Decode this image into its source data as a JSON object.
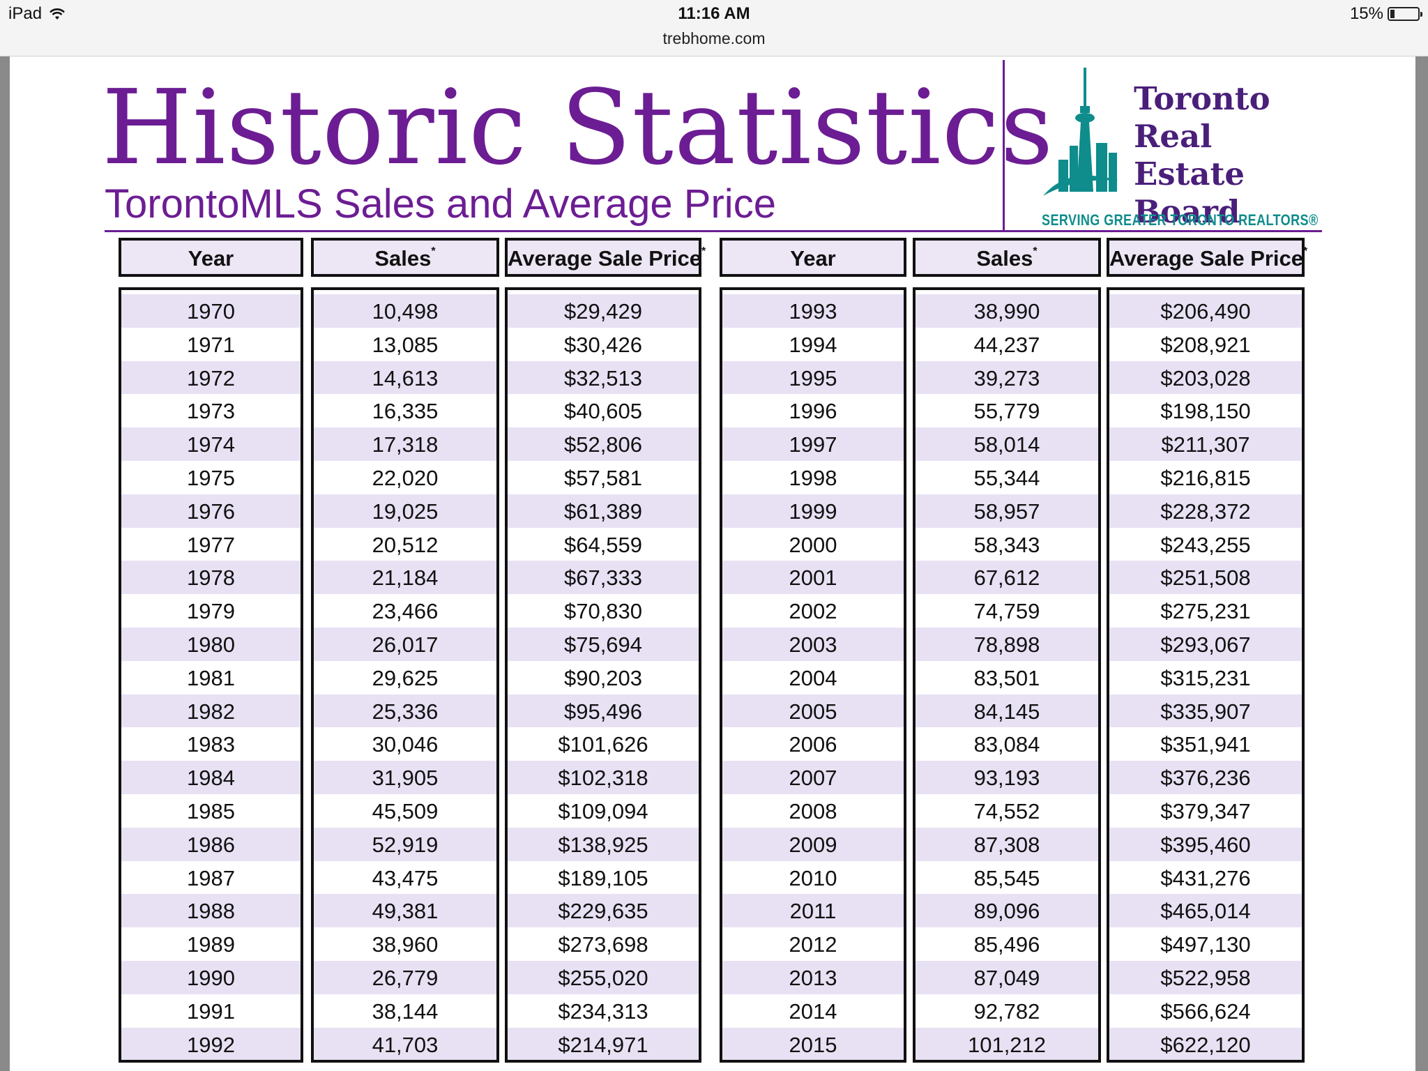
{
  "status_bar": {
    "device": "iPad",
    "time": "11:16 AM",
    "url": "trebhome.com",
    "battery_percent": "15%",
    "battery_level": 0.15
  },
  "header": {
    "title": "Historic Statistics",
    "subtitle": "TorontoMLS Sales and Average Price"
  },
  "logo": {
    "line1": "Toronto",
    "line2": "Real Estate",
    "line3": "Board",
    "tagline": "SERVING GREATER TORONTO REALTORS®"
  },
  "columns": {
    "year": "Year",
    "sales": "Sales",
    "avg_price": "Average Sale Price",
    "asterisk": "*"
  },
  "left_table": {
    "years": [
      "1970",
      "1971",
      "1972",
      "1973",
      "1974",
      "1975",
      "1976",
      "1977",
      "1978",
      "1979",
      "1980",
      "1981",
      "1982",
      "1983",
      "1984",
      "1985",
      "1986",
      "1987",
      "1988",
      "1989",
      "1990",
      "1991",
      "1992"
    ],
    "sales": [
      "10,498",
      "13,085",
      "14,613",
      "16,335",
      "17,318",
      "22,020",
      "19,025",
      "20,512",
      "21,184",
      "23,466",
      "26,017",
      "29,625",
      "25,336",
      "30,046",
      "31,905",
      "45,509",
      "52,919",
      "43,475",
      "49,381",
      "38,960",
      "26,779",
      "38,144",
      "41,703"
    ],
    "prices": [
      "$29,429",
      "$30,426",
      "$32,513",
      "$40,605",
      "$52,806",
      "$57,581",
      "$61,389",
      "$64,559",
      "$67,333",
      "$70,830",
      "$75,694",
      "$90,203",
      "$95,496",
      "$101,626",
      "$102,318",
      "$109,094",
      "$138,925",
      "$189,105",
      "$229,635",
      "$273,698",
      "$255,020",
      "$234,313",
      "$214,971"
    ]
  },
  "right_table": {
    "years": [
      "1993",
      "1994",
      "1995",
      "1996",
      "1997",
      "1998",
      "1999",
      "2000",
      "2001",
      "2002",
      "2003",
      "2004",
      "2005",
      "2006",
      "2007",
      "2008",
      "2009",
      "2010",
      "2011",
      "2012",
      "2013",
      "2014",
      "2015"
    ],
    "sales": [
      "38,990",
      "44,237",
      "39,273",
      "55,779",
      "58,014",
      "55,344",
      "58,957",
      "58,343",
      "67,612",
      "74,759",
      "78,898",
      "83,501",
      "84,145",
      "83,084",
      "93,193",
      "74,552",
      "87,308",
      "85,545",
      "89,096",
      "85,496",
      "87,049",
      "92,782",
      "101,212"
    ],
    "prices": [
      "$206,490",
      "$208,921",
      "$203,028",
      "$198,150",
      "$211,307",
      "$216,815",
      "$228,372",
      "$243,255",
      "$251,508",
      "$275,231",
      "$293,067",
      "$315,231",
      "$335,907",
      "$351,941",
      "$376,236",
      "$379,347",
      "$395,460",
      "$431,276",
      "$465,014",
      "$497,130",
      "$522,958",
      "$566,624",
      "$622,120"
    ]
  },
  "colors": {
    "brand_purple": "#6c1d93",
    "logo_teal": "#0f8c8c",
    "row_shade": "#e8e1f4"
  }
}
